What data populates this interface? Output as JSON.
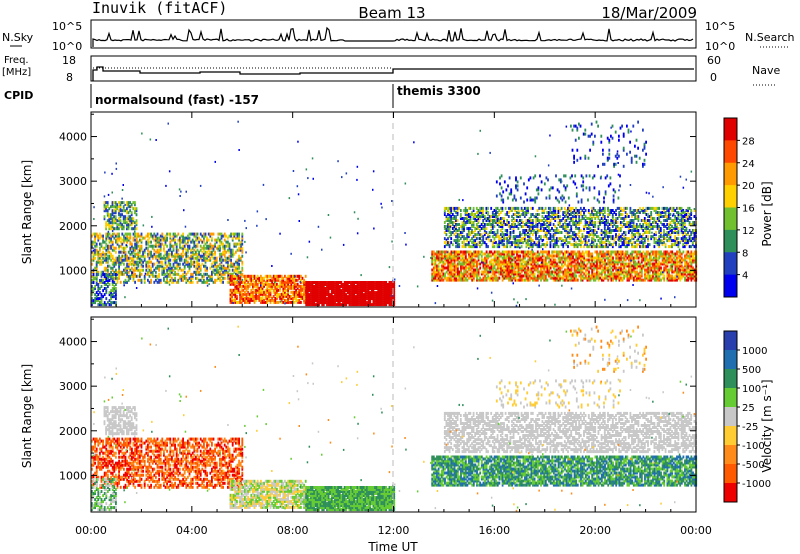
{
  "header": {
    "station": "Inuvik (fitACF)",
    "beam": "Beam 13",
    "date": "18/Mar/2009"
  },
  "panels": {
    "nsky": {
      "label": "N.Sky",
      "ticks": [
        "10^5",
        "10^0"
      ],
      "right_ticks": [
        "10^5",
        "10^0"
      ],
      "right_label": "N.Search"
    },
    "freq": {
      "label": "Freq.",
      "unit": "[MHz]",
      "ticks": [
        "18",
        "8"
      ],
      "right_ticks": [
        "60",
        "0"
      ],
      "right_label": "Nave"
    },
    "cpid": {
      "label": "CPID",
      "modes": [
        {
          "name": "normalsound (fast) -157",
          "start_hour": 0
        },
        {
          "name": "themis 3300",
          "start_hour": 12
        }
      ]
    }
  },
  "chart_data": {
    "type": "heatmap",
    "x_label": "Time UT",
    "x_ticks": [
      "00:00",
      "04:00",
      "08:00",
      "12:00",
      "16:00",
      "20:00",
      "00:00"
    ],
    "x_tick_hours": [
      0,
      4,
      8,
      12,
      16,
      20,
      24
    ],
    "xlim": [
      0,
      24
    ],
    "panels": [
      {
        "id": "power",
        "ylabel": "Slant Range [km]",
        "ylim": [
          180,
          4550
        ],
        "yticks": [
          1000,
          2000,
          3000,
          4000
        ],
        "colorbar_label": "Power [dB]",
        "colorbar_ticks": [
          "28",
          "24",
          "20",
          "16",
          "12",
          "8",
          "4"
        ],
        "colorbar_colors": [
          "#e00000",
          "#ff4800",
          "#ff9a00",
          "#ffd000",
          "#70c030",
          "#2f8f5a",
          "#2040c0",
          "#0000ee"
        ]
      },
      {
        "id": "velocity",
        "ylabel": "Slant Range [km]",
        "ylim": [
          180,
          4550
        ],
        "yticks": [
          1000,
          2000,
          3000,
          4000
        ],
        "colorbar_label": "Velocity [m s^-1]",
        "colorbar_ticks": [
          "1000",
          "500",
          "100",
          "25",
          "-25",
          "-100",
          "-500",
          "-1000"
        ],
        "colorbar_colors": [
          "#2a3fae",
          "#1f6fb0",
          "#2f8f5a",
          "#66cc33",
          "#c8c8c8",
          "#ffcc33",
          "#ff8c1a",
          "#ff5a00",
          "#ee0000"
        ]
      }
    ]
  }
}
